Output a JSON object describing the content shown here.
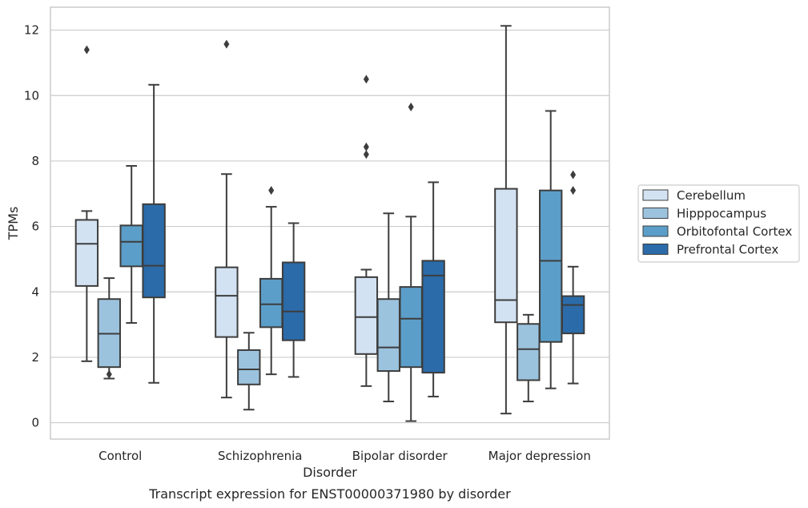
{
  "chart_data": {
    "type": "boxplot",
    "xlabel": "Disorder",
    "ylabel": "TPMs",
    "caption": "Transcript expression for ENST00000371980 by disorder",
    "ylim": [
      -0.5,
      12.7
    ],
    "yticks": [
      0,
      2,
      4,
      6,
      8,
      10,
      12
    ],
    "grid": "horizontal",
    "legend_position": "right",
    "categories": [
      "Control",
      "Schizophrenia",
      "Bipolar disorder",
      "Major depression"
    ],
    "series": [
      {
        "name": "Cerebellum",
        "color": "#d2e2f2",
        "boxes": [
          {
            "whislo": 1.88,
            "q1": 4.18,
            "med": 5.47,
            "q3": 6.2,
            "whishi": 6.47,
            "fliers": [
              11.4
            ]
          },
          {
            "whislo": 0.77,
            "q1": 2.62,
            "med": 3.88,
            "q3": 4.75,
            "whishi": 7.6,
            "fliers": [
              11.57
            ]
          },
          {
            "whislo": 1.12,
            "q1": 2.1,
            "med": 3.23,
            "q3": 4.45,
            "whishi": 4.68,
            "fliers": [
              10.5,
              8.43,
              8.2
            ]
          },
          {
            "whislo": 0.28,
            "q1": 3.07,
            "med": 3.75,
            "q3": 7.15,
            "whishi": 12.13,
            "fliers": []
          }
        ]
      },
      {
        "name": "Hipppocampus",
        "color": "#9cc3de",
        "boxes": [
          {
            "whislo": 1.35,
            "q1": 1.7,
            "med": 2.72,
            "q3": 3.78,
            "whishi": 4.42,
            "fliers": [
              1.48
            ]
          },
          {
            "whislo": 0.4,
            "q1": 1.17,
            "med": 1.63,
            "q3": 2.22,
            "whishi": 2.75,
            "fliers": []
          },
          {
            "whislo": 0.65,
            "q1": 1.58,
            "med": 2.3,
            "q3": 3.78,
            "whishi": 6.4,
            "fliers": []
          },
          {
            "whislo": 0.65,
            "q1": 1.3,
            "med": 2.25,
            "q3": 3.02,
            "whishi": 3.3,
            "fliers": []
          }
        ]
      },
      {
        "name": "Orbitofontal Cortex",
        "color": "#5b9ec9",
        "boxes": [
          {
            "whislo": 3.05,
            "q1": 4.78,
            "med": 5.53,
            "q3": 6.03,
            "whishi": 7.85,
            "fliers": []
          },
          {
            "whislo": 1.48,
            "q1": 2.92,
            "med": 3.62,
            "q3": 4.4,
            "whishi": 6.6,
            "fliers": [
              7.1
            ]
          },
          {
            "whislo": 0.05,
            "q1": 1.7,
            "med": 3.18,
            "q3": 4.15,
            "whishi": 6.3,
            "fliers": [
              9.65
            ]
          },
          {
            "whislo": 1.05,
            "q1": 2.47,
            "med": 4.95,
            "q3": 7.1,
            "whishi": 9.53,
            "fliers": []
          }
        ]
      },
      {
        "name": "Prefrontal Cortex",
        "color": "#2b6ba9",
        "boxes": [
          {
            "whislo": 1.22,
            "q1": 3.83,
            "med": 4.8,
            "q3": 6.68,
            "whishi": 10.33,
            "fliers": []
          },
          {
            "whislo": 1.4,
            "q1": 2.52,
            "med": 3.4,
            "q3": 4.9,
            "whishi": 6.1,
            "fliers": []
          },
          {
            "whislo": 0.8,
            "q1": 1.53,
            "med": 4.5,
            "q3": 4.95,
            "whishi": 7.35,
            "fliers": []
          },
          {
            "whislo": 1.2,
            "q1": 2.73,
            "med": 3.6,
            "q3": 3.87,
            "whishi": 4.77,
            "fliers": [
              7.58,
              7.1
            ]
          }
        ]
      }
    ]
  }
}
